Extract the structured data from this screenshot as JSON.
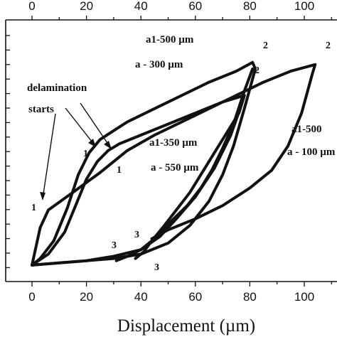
{
  "chart_data": {
    "type": "line",
    "title": "",
    "xlabel": "Displacement (µm)",
    "ylabel": "",
    "xlim": [
      -5,
      108
    ],
    "ylim": [
      0,
      100
    ],
    "x_ticks": [
      0,
      20,
      40,
      60,
      80,
      100
    ],
    "top_axis_ticks": [
      0,
      20,
      40,
      60,
      80,
      100
    ],
    "grid": false,
    "series": [
      {
        "id": "loop_500_300",
        "label_lines": [
          "a1-500 µm",
          "a - 300 µm"
        ],
        "points": [
          [
            0,
            1
          ],
          [
            3,
            4
          ],
          [
            8,
            12
          ],
          [
            13,
            27
          ],
          [
            17,
            42
          ],
          [
            21,
            52
          ],
          [
            25,
            58
          ],
          [
            30,
            62
          ],
          [
            35,
            66
          ],
          [
            45,
            72
          ],
          [
            55,
            78
          ],
          [
            65,
            84
          ],
          [
            75,
            89
          ],
          [
            81,
            93
          ],
          [
            82,
            90
          ],
          [
            78,
            72
          ],
          [
            74,
            55
          ],
          [
            70,
            42
          ],
          [
            65,
            30
          ],
          [
            58,
            19
          ],
          [
            50,
            11
          ],
          [
            40,
            6
          ],
          [
            30,
            4
          ],
          [
            20,
            3
          ],
          [
            10,
            2
          ],
          [
            0,
            1
          ]
        ]
      },
      {
        "id": "loop_350_550",
        "label_lines": [
          "a1-350 µm",
          "a - 550 µm"
        ],
        "points": [
          [
            0,
            1
          ],
          [
            6,
            6
          ],
          [
            12,
            16
          ],
          [
            16,
            28
          ],
          [
            20,
            40
          ],
          [
            24,
            48
          ],
          [
            28,
            53
          ],
          [
            32,
            56
          ],
          [
            40,
            60
          ],
          [
            50,
            65
          ],
          [
            60,
            70
          ],
          [
            70,
            75
          ],
          [
            78,
            78
          ],
          [
            77,
            74
          ],
          [
            73,
            60
          ],
          [
            67,
            45
          ],
          [
            60,
            32
          ],
          [
            53,
            22
          ],
          [
            47,
            14
          ],
          [
            40,
            8
          ],
          [
            30,
            5
          ],
          [
            20,
            3
          ],
          [
            10,
            2
          ],
          [
            0,
            1
          ]
        ]
      },
      {
        "id": "loop_500_100",
        "label_lines": [
          "a1-500",
          "a - 100 µm"
        ],
        "points": [
          [
            0,
            1
          ],
          [
            3,
            18
          ],
          [
            6,
            26
          ],
          [
            15,
            34
          ],
          [
            25,
            43
          ],
          [
            35,
            53
          ],
          [
            45,
            60
          ],
          [
            55,
            66
          ],
          [
            65,
            72
          ],
          [
            75,
            78
          ],
          [
            85,
            84
          ],
          [
            95,
            89
          ],
          [
            104,
            92
          ],
          [
            103,
            88
          ],
          [
            99,
            70
          ],
          [
            94,
            55
          ],
          [
            88,
            44
          ],
          [
            80,
            36
          ],
          [
            70,
            28
          ],
          [
            60,
            22
          ],
          [
            50,
            17
          ],
          [
            44,
            13
          ]
        ]
      },
      {
        "id": "branch_a",
        "label_lines": [],
        "points": [
          [
            31,
            3
          ],
          [
            35,
            5
          ],
          [
            40,
            8
          ],
          [
            44,
            12
          ],
          [
            48,
            17
          ],
          [
            52,
            22
          ],
          [
            57,
            28
          ],
          [
            62,
            36
          ],
          [
            66,
            44
          ],
          [
            70,
            54
          ],
          [
            74,
            65
          ],
          [
            78,
            80
          ],
          [
            81,
            90
          ]
        ]
      },
      {
        "id": "branch_b",
        "label_lines": [],
        "points": [
          [
            38,
            4
          ],
          [
            41,
            7
          ],
          [
            44,
            12
          ],
          [
            48,
            18
          ],
          [
            53,
            26
          ],
          [
            58,
            34
          ],
          [
            63,
            44
          ],
          [
            68,
            54
          ],
          [
            72,
            62
          ],
          [
            76,
            70
          ],
          [
            78,
            78
          ]
        ]
      }
    ],
    "annotations": [
      {
        "text": "delamination",
        "x": 0,
        "y": 67
      },
      {
        "text": "starts",
        "x": 2,
        "y": 62
      },
      {
        "text": "1",
        "x": 0,
        "y": 19
      },
      {
        "text": "1",
        "x": 19,
        "y": 44
      },
      {
        "text": "1",
        "x": 31,
        "y": 41
      },
      {
        "text": "2",
        "x": 84,
        "y": 93
      },
      {
        "text": "2",
        "x": 80,
        "y": 80
      },
      {
        "text": "2",
        "x": 107,
        "y": 93
      },
      {
        "text": "3",
        "x": 27,
        "y": 8
      },
      {
        "text": "3",
        "x": 37,
        "y": 13
      },
      {
        "text": "3",
        "x": 45,
        "y": -1
      }
    ]
  }
}
